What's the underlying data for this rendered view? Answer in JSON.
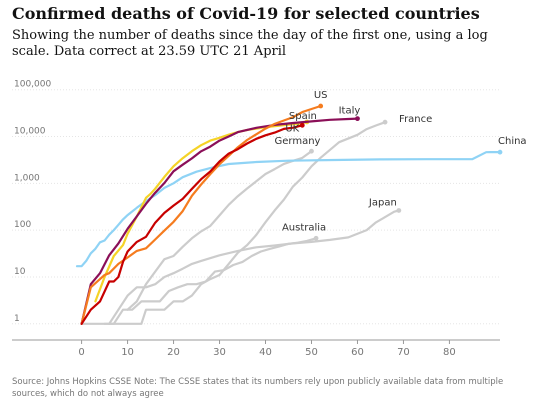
{
  "header": {
    "title": "Confirmed deaths of Covid-19 for selected countries",
    "subtitle": "Showing the number of deaths since the day of the first one, using a log scale. Data correct at 23.59 UTC 21 April"
  },
  "footer": {
    "source": "Source: Johns Hopkins CSSE Note: The CSSE states that its numbers rely upon publicly available data from multiple sources, which do not always agree"
  },
  "colors": {
    "us": "#f57c1f",
    "spain": "#f5d327",
    "italy": "#8b0f58",
    "uk": "#c70000",
    "france": "#cccccc",
    "germany": "#cccccc",
    "china": "#8fd3f5",
    "japan": "#cccccc",
    "australia": "#cccccc",
    "axis": "#999999",
    "grid": "#e5e5e5"
  },
  "chart_data": {
    "type": "line",
    "title": "Confirmed deaths of Covid-19 for selected countries",
    "xlabel": "",
    "ylabel": "",
    "xlim": [
      -6,
      91
    ],
    "ylim": [
      0.45,
      120000
    ],
    "yscale": "log",
    "xticks": [
      0,
      10,
      20,
      30,
      40,
      50,
      60,
      70,
      80
    ],
    "xtick_labels": [
      "0",
      "10",
      "20",
      "30",
      "40",
      "50",
      "60",
      "70",
      "80"
    ],
    "yticks": [
      1,
      10,
      100,
      1000,
      10000,
      100000
    ],
    "ytick_labels": [
      "1",
      "10",
      "100",
      "1,000",
      "10,000",
      "100,000"
    ],
    "grid": true,
    "series": [
      {
        "name": "China",
        "key": "china",
        "label_pos": "right",
        "x": [
          -1,
          0,
          1,
          2,
          3,
          4,
          5,
          6,
          7,
          8,
          9,
          10,
          12,
          14,
          16,
          18,
          20,
          22,
          25,
          28,
          32,
          38,
          45,
          55,
          65,
          75,
          85,
          88,
          89,
          91
        ],
        "y": [
          17,
          17,
          22,
          32,
          40,
          55,
          60,
          80,
          100,
          130,
          170,
          210,
          300,
          420,
          560,
          800,
          1000,
          1350,
          1770,
          2118,
          2592,
          2860,
          3050,
          3150,
          3250,
          3270,
          3300,
          4632,
          4636,
          4636
        ]
      },
      {
        "name": "Spain",
        "key": "spain",
        "label_pos": "top",
        "x": [
          3,
          5,
          7,
          9,
          10,
          12,
          14,
          15,
          16,
          18,
          20,
          22,
          24,
          26,
          28,
          30,
          32,
          34,
          36,
          40,
          44,
          47,
          48,
          49
        ],
        "y": [
          3,
          10,
          28,
          48,
          84,
          196,
          491,
          598,
          767,
          1375,
          2311,
          3434,
          4858,
          6528,
          8189,
          9387,
          10935,
          12418,
          13798,
          15843,
          17489,
          18708,
          19478,
          20453
        ]
      },
      {
        "name": "Italy",
        "key": "italy",
        "label_pos": "top",
        "x": [
          0,
          2,
          4,
          6,
          8,
          10,
          12,
          14,
          16,
          18,
          20,
          22,
          24,
          26,
          28,
          30,
          32,
          34,
          38,
          42,
          46,
          50,
          54,
          58,
          60
        ],
        "y": [
          1,
          7,
          12,
          29,
          52,
          107,
          197,
          366,
          631,
          1016,
          1809,
          2503,
          3405,
          4825,
          6077,
          8165,
          10023,
          12428,
          15362,
          17669,
          19468,
          21067,
          22745,
          23660,
          24114
        ]
      },
      {
        "name": "US",
        "key": "us",
        "label_pos": "top",
        "x": [
          0,
          2,
          4,
          5,
          6,
          8,
          10,
          12,
          14,
          16,
          18,
          20,
          22,
          24,
          26,
          28,
          30,
          32,
          34,
          36,
          38,
          40,
          42,
          44,
          46,
          48,
          50,
          52
        ],
        "y": [
          1,
          6,
          9,
          11,
          12,
          19,
          26,
          36,
          41,
          63,
          98,
          150,
          255,
          541,
          942,
          1578,
          2557,
          3873,
          5927,
          8407,
          11170,
          14795,
          18586,
          22020,
          26033,
          33286,
          38664,
          44845
        ]
      },
      {
        "name": "UK",
        "key": "uk",
        "label_pos": "top",
        "x": [
          0,
          2,
          4,
          6,
          7,
          8,
          9,
          10,
          12,
          14,
          16,
          18,
          20,
          22,
          24,
          26,
          28,
          30,
          32,
          34,
          36,
          38,
          40,
          42,
          44,
          46,
          48
        ],
        "y": [
          1,
          2,
          3,
          8,
          8,
          10,
          21,
          35,
          56,
          72,
          144,
          233,
          335,
          465,
          759,
          1228,
          1789,
          2921,
          4313,
          5373,
          7097,
          8958,
          10612,
          12107,
          14576,
          15464,
          17337
        ]
      },
      {
        "name": "France",
        "key": "france",
        "label_pos": "right",
        "x": [
          6,
          8,
          10,
          12,
          13,
          14,
          16,
          18,
          20,
          22,
          24,
          26,
          28,
          30,
          32,
          34,
          36,
          38,
          40,
          42,
          44,
          46,
          48,
          50,
          52,
          56,
          60,
          62,
          64,
          66
        ],
        "y": [
          1,
          1,
          1,
          1,
          1,
          2,
          2,
          2,
          3,
          3,
          4,
          7,
          9,
          11,
          19,
          33,
          48,
          79,
          148,
          264,
          450,
          860,
          1330,
          2314,
          3520,
          7560,
          10869,
          14393,
          17167,
          20265
        ]
      },
      {
        "name": "Germany",
        "key": "germany",
        "label_pos": "top",
        "x": [
          10,
          12,
          14,
          16,
          18,
          20,
          22,
          24,
          26,
          28,
          30,
          32,
          34,
          36,
          38,
          40,
          42,
          44,
          46,
          48,
          50
        ],
        "y": [
          2,
          3,
          7,
          13,
          24,
          28,
          44,
          67,
          94,
          123,
          206,
          348,
          533,
          775,
          1107,
          1584,
          2016,
          2607,
          3022,
          3500,
          4862
        ]
      },
      {
        "name": "Japan",
        "key": "japan",
        "label_pos": "top",
        "x": [
          0,
          2,
          4,
          6,
          8,
          10,
          12,
          14,
          16,
          18,
          20,
          22,
          24,
          26,
          30,
          34,
          38,
          42,
          46,
          50,
          54,
          58,
          62,
          64,
          66,
          68,
          69
        ],
        "y": [
          1,
          1,
          1,
          1,
          2,
          4,
          6,
          6,
          7,
          10,
          12,
          15,
          19,
          22,
          29,
          36,
          43,
          47,
          52,
          56,
          62,
          70,
          100,
          146,
          190,
          248,
          263
        ]
      },
      {
        "name": "Australia",
        "key": "australia",
        "label_pos": "top",
        "x": [
          5,
          7,
          9,
          11,
          13,
          15,
          17,
          19,
          21,
          23,
          25,
          27,
          29,
          31,
          33,
          35,
          37,
          39,
          41,
          43,
          45,
          47,
          49,
          51
        ],
        "y": [
          1,
          1,
          2,
          2,
          3,
          3,
          3,
          5,
          6,
          7,
          7,
          8,
          13,
          14,
          18,
          21,
          28,
          35,
          40,
          45,
          51,
          54,
          59,
          67
        ]
      }
    ]
  }
}
